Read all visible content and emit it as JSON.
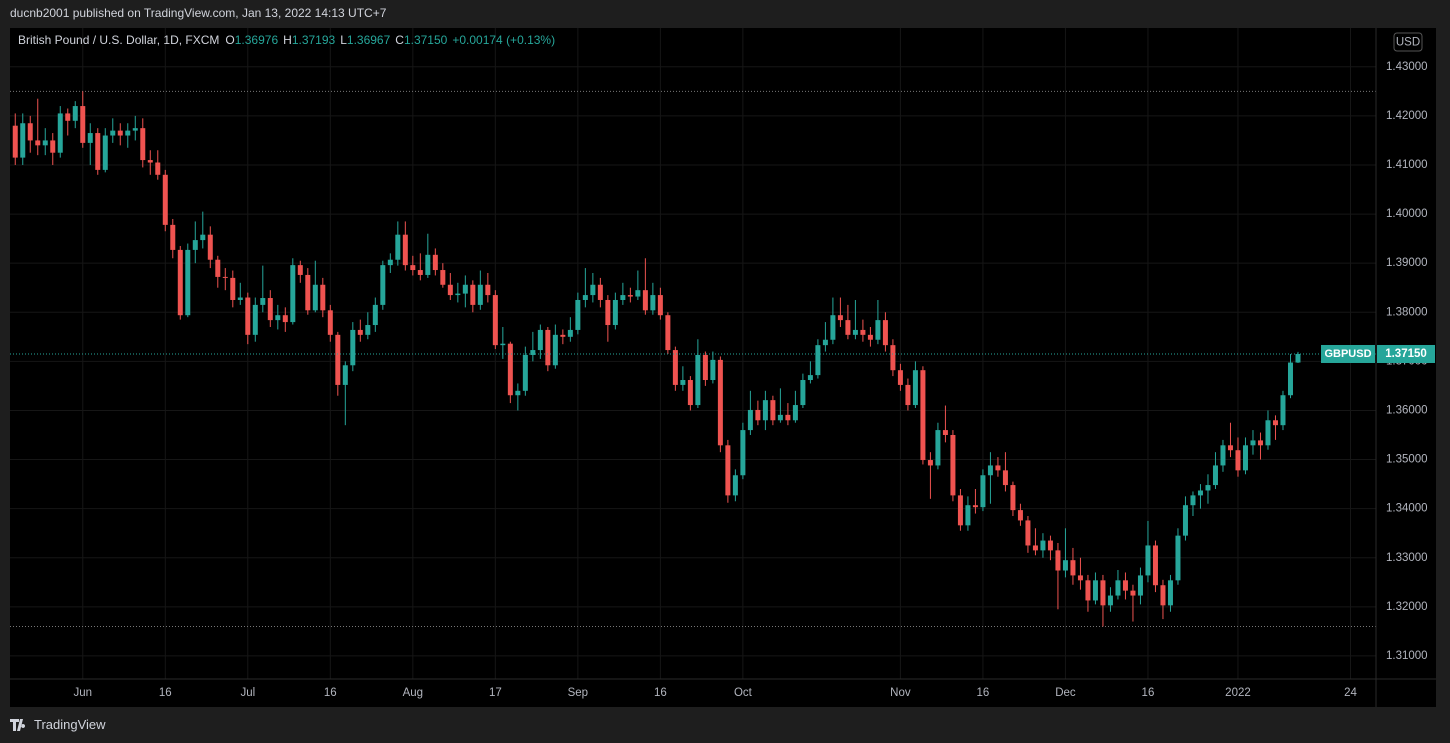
{
  "header": {
    "published": "ducnb2001 published on TradingView.com, Jan 13, 2022 14:13 UTC+7"
  },
  "footer": {
    "brand": "TradingView"
  },
  "chart_data": {
    "type": "candlestick",
    "title": "British Pound / U.S. Dollar, 1D, FXCM",
    "symbol": "GBPUSD",
    "currency": "USD",
    "ohlc_legend": [
      {
        "key": "O",
        "value": "1.36976"
      },
      {
        "key": "H",
        "value": "1.37193"
      },
      {
        "key": "L",
        "value": "1.36967"
      },
      {
        "key": "C",
        "value": "1.37150"
      }
    ],
    "change": "+0.00174 (+0.13%)",
    "last_price_label": "1.37150",
    "open": [
      1.418,
      1.4115,
      1.4185,
      1.415,
      1.414,
      1.415,
      1.4125,
      1.4205,
      1.419,
      1.422,
      1.4145,
      1.4165,
      1.409,
      1.416,
      1.417,
      1.416,
      1.417,
      1.4175,
      1.411,
      1.4105,
      1.408,
      1.3978,
      1.3927,
      1.3794,
      1.3927,
      1.3947,
      1.3958,
      1.3907,
      1.3872,
      1.387,
      1.3825,
      1.383,
      1.3754,
      1.3815,
      1.3829,
      1.3784,
      1.3794,
      1.378,
      1.3896,
      1.3876,
      1.3804,
      1.3856,
      1.3804,
      1.3754,
      1.3652,
      1.3692,
      1.3764,
      1.3754,
      1.3774,
      1.3815,
      1.3896,
      1.3907,
      1.3958,
      1.3896,
      1.3886,
      1.3876,
      1.3917,
      1.3886,
      1.3856,
      1.3835,
      1.3838,
      1.3856,
      1.3815,
      1.3856,
      1.3835,
      1.3733,
      1.3736,
      1.3631,
      1.364,
      1.3713,
      1.3723,
      1.3764,
      1.3692,
      1.3754,
      1.375,
      1.3764,
      1.3825,
      1.3835,
      1.3856,
      1.3825,
      1.3774,
      1.3825,
      1.3835,
      1.3832,
      1.3845,
      1.3804,
      1.3835,
      1.3794,
      1.3723,
      1.3652,
      1.3662,
      1.3611,
      1.3713,
      1.3662,
      1.3703,
      1.3529,
      1.3427,
      1.3468,
      1.356,
      1.3601,
      1.358,
      1.3621,
      1.358,
      1.3591,
      1.358,
      1.3611,
      1.3662,
      1.3672,
      1.3733,
      1.3744,
      1.3794,
      1.3784,
      1.3754,
      1.3764,
      1.3754,
      1.3744,
      1.3784,
      1.3733,
      1.3682,
      1.3652,
      1.3611,
      1.3682,
      1.3499,
      1.3488,
      1.356,
      1.355,
      1.3427,
      1.3366,
      1.3407,
      1.3403,
      1.3468,
      1.3488,
      1.3478,
      1.3448,
      1.3397,
      1.3376,
      1.3325,
      1.3315,
      1.3335,
      1.3315,
      1.3274,
      1.3295,
      1.3264,
      1.3254,
      1.3213,
      1.3254,
      1.3203,
      1.3223,
      1.3254,
      1.3233,
      1.3223,
      1.3264,
      1.3325,
      1.3244,
      1.3203,
      1.3254,
      1.3345,
      1.3407,
      1.3427,
      1.3437,
      1.3448,
      1.3488,
      1.3529,
      1.3519,
      1.3478,
      1.3529,
      1.3539,
      1.3529,
      1.358,
      1.357,
      1.3631,
      1.36976
    ],
    "high": [
      1.4205,
      1.4205,
      1.42,
      1.4235,
      1.4175,
      1.4165,
      1.422,
      1.4215,
      1.423,
      1.425,
      1.4185,
      1.4175,
      1.4175,
      1.4195,
      1.4185,
      1.4185,
      1.42,
      1.4195,
      1.413,
      1.413,
      1.409,
      1.399,
      1.3935,
      1.394,
      1.3985,
      1.4005,
      1.3975,
      1.3915,
      1.389,
      1.3885,
      1.386,
      1.384,
      1.383,
      1.3895,
      1.3845,
      1.3815,
      1.381,
      1.391,
      1.3905,
      1.389,
      1.3905,
      1.387,
      1.3815,
      1.376,
      1.37,
      1.378,
      1.3785,
      1.38,
      1.383,
      1.3905,
      1.392,
      1.3985,
      1.3985,
      1.3915,
      1.392,
      1.396,
      1.393,
      1.39,
      1.388,
      1.386,
      1.3875,
      1.3865,
      1.3885,
      1.388,
      1.3845,
      1.377,
      1.374,
      1.3655,
      1.373,
      1.376,
      1.3775,
      1.377,
      1.3775,
      1.3765,
      1.379,
      1.384,
      1.389,
      1.388,
      1.387,
      1.3835,
      1.384,
      1.386,
      1.385,
      1.3885,
      1.391,
      1.386,
      1.385,
      1.38,
      1.373,
      1.369,
      1.367,
      1.3745,
      1.372,
      1.372,
      1.371,
      1.354,
      1.348,
      1.3575,
      1.364,
      1.362,
      1.364,
      1.363,
      1.3645,
      1.3615,
      1.364,
      1.3675,
      1.37,
      1.3745,
      1.378,
      1.383,
      1.383,
      1.3815,
      1.3825,
      1.3785,
      1.377,
      1.3825,
      1.38,
      1.3745,
      1.3695,
      1.3665,
      1.37,
      1.369,
      1.3515,
      1.3575,
      1.361,
      1.356,
      1.344,
      1.3425,
      1.344,
      1.348,
      1.3515,
      1.3505,
      1.3515,
      1.3455,
      1.341,
      1.3385,
      1.336,
      1.335,
      1.3345,
      1.333,
      1.336,
      1.332,
      1.33,
      1.3265,
      1.327,
      1.3265,
      1.324,
      1.3275,
      1.327,
      1.3245,
      1.328,
      1.3375,
      1.3335,
      1.3255,
      1.3265,
      1.336,
      1.3425,
      1.3435,
      1.345,
      1.347,
      1.3515,
      1.354,
      1.3575,
      1.3545,
      1.3545,
      1.356,
      1.3555,
      1.36,
      1.359,
      1.364,
      1.3715,
      1.37193
    ],
    "low": [
      1.41,
      1.41,
      1.4125,
      1.412,
      1.412,
      1.41,
      1.4115,
      1.416,
      1.4175,
      1.4135,
      1.41,
      1.408,
      1.4085,
      1.4145,
      1.414,
      1.4135,
      1.415,
      1.4095,
      1.408,
      1.407,
      1.3965,
      1.391,
      1.3785,
      1.379,
      1.39,
      1.393,
      1.389,
      1.385,
      1.3845,
      1.381,
      1.3815,
      1.3735,
      1.374,
      1.38,
      1.377,
      1.3765,
      1.376,
      1.3775,
      1.386,
      1.3795,
      1.38,
      1.379,
      1.374,
      1.363,
      1.357,
      1.368,
      1.374,
      1.3745,
      1.376,
      1.3805,
      1.388,
      1.3895,
      1.3885,
      1.3875,
      1.3865,
      1.387,
      1.3875,
      1.385,
      1.3825,
      1.382,
      1.381,
      1.38,
      1.3805,
      1.382,
      1.3725,
      1.3705,
      1.3615,
      1.36,
      1.363,
      1.37,
      1.3705,
      1.368,
      1.3685,
      1.3735,
      1.374,
      1.3755,
      1.381,
      1.382,
      1.381,
      1.374,
      1.3765,
      1.3815,
      1.382,
      1.3825,
      1.3795,
      1.3795,
      1.3785,
      1.3715,
      1.364,
      1.364,
      1.36,
      1.3605,
      1.365,
      1.3655,
      1.3515,
      1.3412,
      1.3415,
      1.346,
      1.355,
      1.357,
      1.356,
      1.357,
      1.3575,
      1.357,
      1.3575,
      1.3605,
      1.3655,
      1.3665,
      1.372,
      1.3735,
      1.377,
      1.3745,
      1.3745,
      1.374,
      1.373,
      1.3735,
      1.372,
      1.367,
      1.364,
      1.36,
      1.3605,
      1.349,
      1.342,
      1.348,
      1.3535,
      1.3415,
      1.3355,
      1.3355,
      1.339,
      1.3395,
      1.341,
      1.3465,
      1.3435,
      1.3385,
      1.3365,
      1.331,
      1.3305,
      1.33,
      1.3295,
      1.3195,
      1.326,
      1.3245,
      1.3235,
      1.319,
      1.3205,
      1.316,
      1.319,
      1.3215,
      1.3215,
      1.317,
      1.3205,
      1.325,
      1.323,
      1.3175,
      1.319,
      1.3245,
      1.3335,
      1.3385,
      1.34,
      1.341,
      1.344,
      1.3475,
      1.3505,
      1.3465,
      1.347,
      1.351,
      1.35,
      1.352,
      1.354,
      1.356,
      1.3625,
      1.36967
    ],
    "close": [
      1.4115,
      1.4185,
      1.415,
      1.414,
      1.415,
      1.4125,
      1.4205,
      1.419,
      1.422,
      1.4145,
      1.4165,
      1.409,
      1.416,
      1.417,
      1.416,
      1.417,
      1.4175,
      1.411,
      1.4105,
      1.408,
      1.3978,
      1.3927,
      1.3794,
      1.3927,
      1.3947,
      1.3958,
      1.3907,
      1.3872,
      1.387,
      1.3825,
      1.383,
      1.3754,
      1.3815,
      1.3829,
      1.3784,
      1.3794,
      1.378,
      1.3896,
      1.3876,
      1.3804,
      1.3856,
      1.3804,
      1.3754,
      1.3652,
      1.3692,
      1.3764,
      1.3754,
      1.3774,
      1.3815,
      1.3896,
      1.3907,
      1.3958,
      1.3896,
      1.3886,
      1.3876,
      1.3917,
      1.3886,
      1.3856,
      1.3835,
      1.3838,
      1.3856,
      1.3815,
      1.3856,
      1.3835,
      1.3733,
      1.3736,
      1.3631,
      1.364,
      1.3713,
      1.3723,
      1.3764,
      1.3692,
      1.3754,
      1.375,
      1.3764,
      1.3825,
      1.3835,
      1.3856,
      1.3825,
      1.3774,
      1.3825,
      1.3835,
      1.3832,
      1.3845,
      1.3804,
      1.3835,
      1.3794,
      1.3723,
      1.3652,
      1.3662,
      1.3611,
      1.3713,
      1.3662,
      1.3703,
      1.3529,
      1.3427,
      1.3468,
      1.356,
      1.3601,
      1.358,
      1.3621,
      1.358,
      1.3591,
      1.358,
      1.3611,
      1.3662,
      1.3672,
      1.3733,
      1.3744,
      1.3794,
      1.3784,
      1.3754,
      1.3764,
      1.3754,
      1.3744,
      1.3784,
      1.3733,
      1.3682,
      1.3652,
      1.3611,
      1.3682,
      1.3499,
      1.3488,
      1.356,
      1.355,
      1.3427,
      1.3366,
      1.3407,
      1.3403,
      1.3468,
      1.3488,
      1.3478,
      1.3448,
      1.3397,
      1.3376,
      1.3325,
      1.3315,
      1.3335,
      1.3315,
      1.3274,
      1.3295,
      1.3264,
      1.3254,
      1.3213,
      1.3254,
      1.3203,
      1.3223,
      1.3254,
      1.3233,
      1.3223,
      1.3264,
      1.3325,
      1.3244,
      1.3203,
      1.3254,
      1.3345,
      1.3407,
      1.3427,
      1.3437,
      1.3448,
      1.3488,
      1.3529,
      1.3519,
      1.3478,
      1.3529,
      1.3539,
      1.3529,
      1.358,
      1.357,
      1.3631,
      1.36976,
      1.3715
    ],
    "up_color": "#26a69a",
    "down_color": "#ef5350",
    "xlim": [
      -0.7,
      181.4
    ],
    "xticks": [
      {
        "value": 9,
        "label": "Jun"
      },
      {
        "value": 20,
        "label": "16"
      },
      {
        "value": 31,
        "label": "Jul"
      },
      {
        "value": 42,
        "label": "16"
      },
      {
        "value": 53,
        "label": "Aug"
      },
      {
        "value": 64,
        "label": "17"
      },
      {
        "value": 75,
        "label": "Sep"
      },
      {
        "value": 86,
        "label": "16"
      },
      {
        "value": 97,
        "label": "Oct"
      },
      {
        "value": 118,
        "label": "Nov"
      },
      {
        "value": 129,
        "label": "16"
      },
      {
        "value": 140,
        "label": "Dec"
      },
      {
        "value": 151,
        "label": "16"
      },
      {
        "value": 163,
        "label": "2022"
      },
      {
        "value": 178,
        "label": "24"
      }
    ],
    "ylim": [
      1.3053,
      1.4379
    ],
    "yticks": [
      {
        "value": 1.31,
        "label": "1.31000"
      },
      {
        "value": 1.32,
        "label": "1.32000"
      },
      {
        "value": 1.33,
        "label": "1.33000"
      },
      {
        "value": 1.34,
        "label": "1.34000"
      },
      {
        "value": 1.35,
        "label": "1.35000"
      },
      {
        "value": 1.36,
        "label": "1.36000"
      },
      {
        "value": 1.37,
        "label": "1.37000"
      },
      {
        "value": 1.38,
        "label": "1.38000"
      },
      {
        "value": 1.39,
        "label": "1.39000"
      },
      {
        "value": 1.4,
        "label": "1.40000"
      },
      {
        "value": 1.41,
        "label": "1.41000"
      },
      {
        "value": 1.42,
        "label": "1.42000"
      },
      {
        "value": 1.43,
        "label": "1.43000"
      }
    ],
    "reference_lines": [
      1.425,
      1.316
    ],
    "grid": true
  }
}
